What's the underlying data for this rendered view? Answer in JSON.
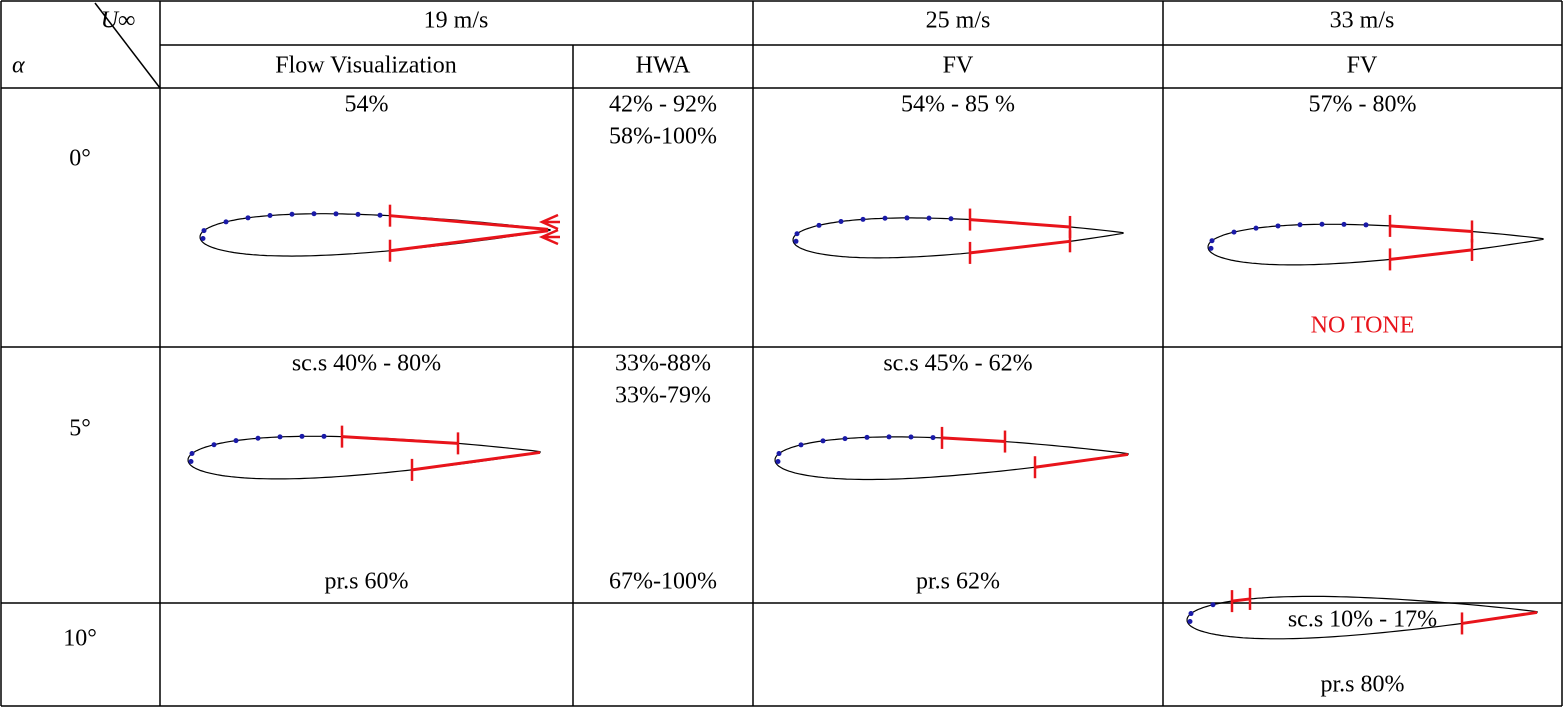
{
  "header": {
    "corner_top": "U∞",
    "corner_bottom": "α",
    "speeds": [
      "19 m/s",
      "25 m/s",
      "33 m/s"
    ],
    "methods": [
      "Flow Visualization",
      "HWA",
      "FV",
      "FV"
    ]
  },
  "rows": [
    {
      "alpha": "0°",
      "cells": [
        {
          "top": [
            "54%"
          ]
        },
        {
          "top": [
            "42% - 92%",
            "58%-100%"
          ]
        },
        {
          "top": [
            "54% - 85 %"
          ]
        },
        {
          "top": [
            "57% - 80%"
          ],
          "bottom": [
            "NO TONE"
          ]
        }
      ]
    },
    {
      "alpha": "5°",
      "cells": [
        {
          "top": [
            "sc.s 40% - 80%"
          ],
          "bottom": [
            "pr.s 60%"
          ]
        },
        {
          "top": [
            "33%-88%",
            "33%-79%"
          ],
          "bottom": [
            "67%-100%"
          ]
        },
        {
          "top": [
            "sc.s 45% - 62%"
          ],
          "bottom": [
            "pr.s 62%"
          ]
        },
        {}
      ]
    },
    {
      "alpha": "10°",
      "cells": [
        {},
        {},
        {},
        {
          "top": [
            "sc.s 10% - 17%"
          ],
          "bottom": [
            "pr.s 80%"
          ]
        }
      ]
    }
  ]
}
